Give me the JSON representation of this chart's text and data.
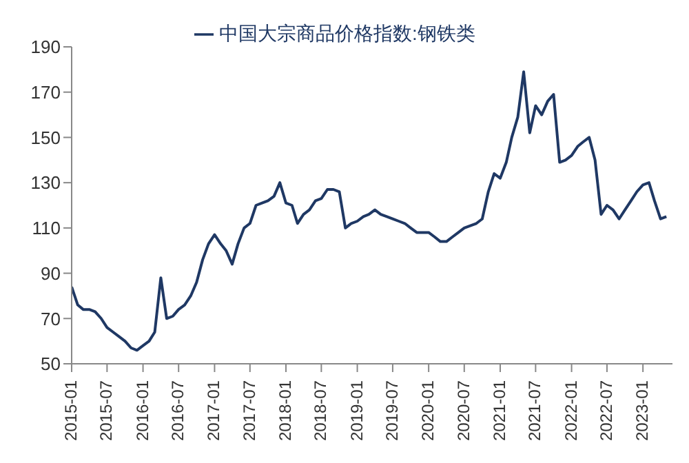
{
  "chart_data": {
    "type": "line",
    "x": [
      "2015-01",
      "2015-02",
      "2015-03",
      "2015-04",
      "2015-05",
      "2015-06",
      "2015-07",
      "2015-08",
      "2015-09",
      "2015-10",
      "2015-11",
      "2015-12",
      "2016-01",
      "2016-02",
      "2016-03",
      "2016-04",
      "2016-05",
      "2016-06",
      "2016-07",
      "2016-08",
      "2016-09",
      "2016-10",
      "2016-11",
      "2016-12",
      "2017-01",
      "2017-02",
      "2017-03",
      "2017-04",
      "2017-05",
      "2017-06",
      "2017-07",
      "2017-08",
      "2017-09",
      "2017-10",
      "2017-11",
      "2017-12",
      "2018-01",
      "2018-02",
      "2018-03",
      "2018-04",
      "2018-05",
      "2018-06",
      "2018-07",
      "2018-08",
      "2018-09",
      "2018-10",
      "2018-11",
      "2018-12",
      "2019-01",
      "2019-02",
      "2019-03",
      "2019-04",
      "2019-05",
      "2019-06",
      "2019-07",
      "2019-08",
      "2019-09",
      "2019-10",
      "2019-11",
      "2019-12",
      "2020-01",
      "2020-02",
      "2020-03",
      "2020-04",
      "2020-05",
      "2020-06",
      "2020-07",
      "2020-08",
      "2020-09",
      "2020-10",
      "2020-11",
      "2020-12",
      "2021-01",
      "2021-02",
      "2021-03",
      "2021-04",
      "2021-05",
      "2021-06",
      "2021-07",
      "2021-08",
      "2021-09",
      "2021-10",
      "2021-11",
      "2021-12",
      "2022-01",
      "2022-02",
      "2022-03",
      "2022-04",
      "2022-05",
      "2022-06",
      "2022-07",
      "2022-08",
      "2022-09",
      "2022-10",
      "2022-11",
      "2022-12",
      "2023-01",
      "2023-02",
      "2023-03",
      "2023-04",
      "2023-05"
    ],
    "series": [
      {
        "name": "中国大宗商品价格指数:钢铁类",
        "color": "#1f3864",
        "values": [
          84,
          76,
          74,
          74,
          73,
          70,
          66,
          64,
          62,
          60,
          57,
          56,
          58,
          60,
          64,
          88,
          70,
          71,
          74,
          76,
          80,
          86,
          96,
          103,
          107,
          103,
          100,
          94,
          103,
          110,
          112,
          120,
          121,
          122,
          124,
          130,
          121,
          120,
          112,
          116,
          118,
          122,
          123,
          127,
          127,
          126,
          110,
          112,
          113,
          115,
          116,
          118,
          116,
          115,
          114,
          113,
          112,
          110,
          108,
          108,
          108,
          106,
          104,
          104,
          106,
          108,
          110,
          111,
          112,
          114,
          126,
          134,
          132,
          139,
          150,
          159,
          179,
          152,
          164,
          160,
          166,
          169,
          139,
          140,
          142,
          146,
          148,
          150,
          140,
          116,
          120,
          118,
          114,
          118,
          122,
          126,
          129,
          130,
          122,
          114,
          115
        ]
      }
    ],
    "xlim": [
      "2015-01",
      "2023-06"
    ],
    "xticks": [
      "2015-01",
      "2015-07",
      "2016-01",
      "2016-07",
      "2017-01",
      "2017-07",
      "2018-01",
      "2018-07",
      "2019-01",
      "2019-07",
      "2020-01",
      "2020-07",
      "2021-01",
      "2021-07",
      "2022-01",
      "2022-07",
      "2023-01"
    ],
    "ylim": [
      50,
      190
    ],
    "yticks": [
      50,
      70,
      90,
      110,
      130,
      150,
      170,
      190
    ],
    "legend": "top",
    "marker": "none",
    "line_style": "solid",
    "grid": false
  }
}
